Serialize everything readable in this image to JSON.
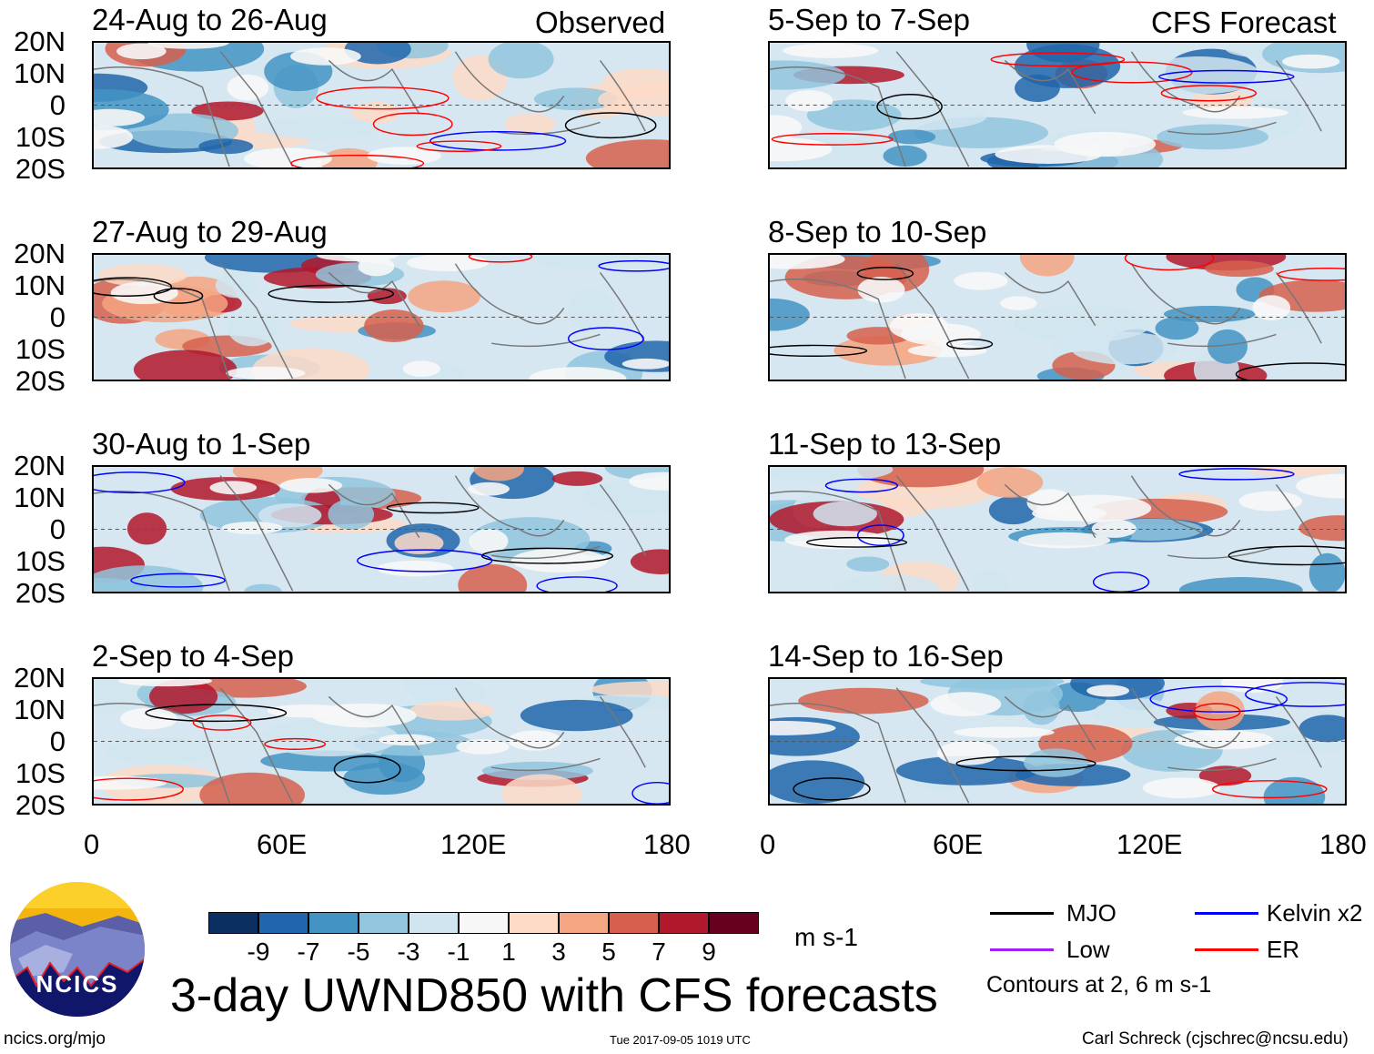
{
  "header": {
    "observed_label": "Observed",
    "forecast_label": "CFS Forecast"
  },
  "panels": {
    "observed": [
      {
        "title": "24-Aug to 26-Aug"
      },
      {
        "title": "27-Aug to 29-Aug"
      },
      {
        "title": "30-Aug to 1-Sep"
      },
      {
        "title": "2-Sep to 4-Sep"
      }
    ],
    "forecast": [
      {
        "title": "5-Sep to 7-Sep"
      },
      {
        "title": "8-Sep to 10-Sep"
      },
      {
        "title": "11-Sep to 13-Sep"
      },
      {
        "title": "14-Sep to 16-Sep"
      }
    ]
  },
  "axes": {
    "lat_labels": [
      "20N",
      "10N",
      "0",
      "10S",
      "20S"
    ],
    "lon_labels": [
      "0",
      "60E",
      "120E",
      "180"
    ]
  },
  "colorbar": {
    "colors": [
      "#0b2f60",
      "#2166ac",
      "#4393c3",
      "#92c5de",
      "#d1e5f0",
      "#f7f7f7",
      "#fddbc7",
      "#f4a582",
      "#d6604d",
      "#b2182b",
      "#67001f"
    ],
    "labels": [
      "-9",
      "-7",
      "-5",
      "-3",
      "-1",
      "1",
      "3",
      "5",
      "7",
      "9"
    ],
    "units": "m s-1"
  },
  "legend": {
    "items": [
      {
        "label": "MJO",
        "color": "#000000"
      },
      {
        "label": "Kelvin x2",
        "color": "#0000ff"
      },
      {
        "label": "Low",
        "color": "#a020f0"
      },
      {
        "label": "ER",
        "color": "#ff0000"
      }
    ],
    "note": "Contours at 2, 6 m s-1"
  },
  "footer": {
    "title": "3-day UWND850 with CFS forecasts",
    "logo_text": "NCICS",
    "url": "ncics.org/mjo",
    "timestamp": "Tue 2017-09-05 1019 UTC",
    "credit": "Carl Schreck (cjschrec@ncsu.edu)"
  }
}
